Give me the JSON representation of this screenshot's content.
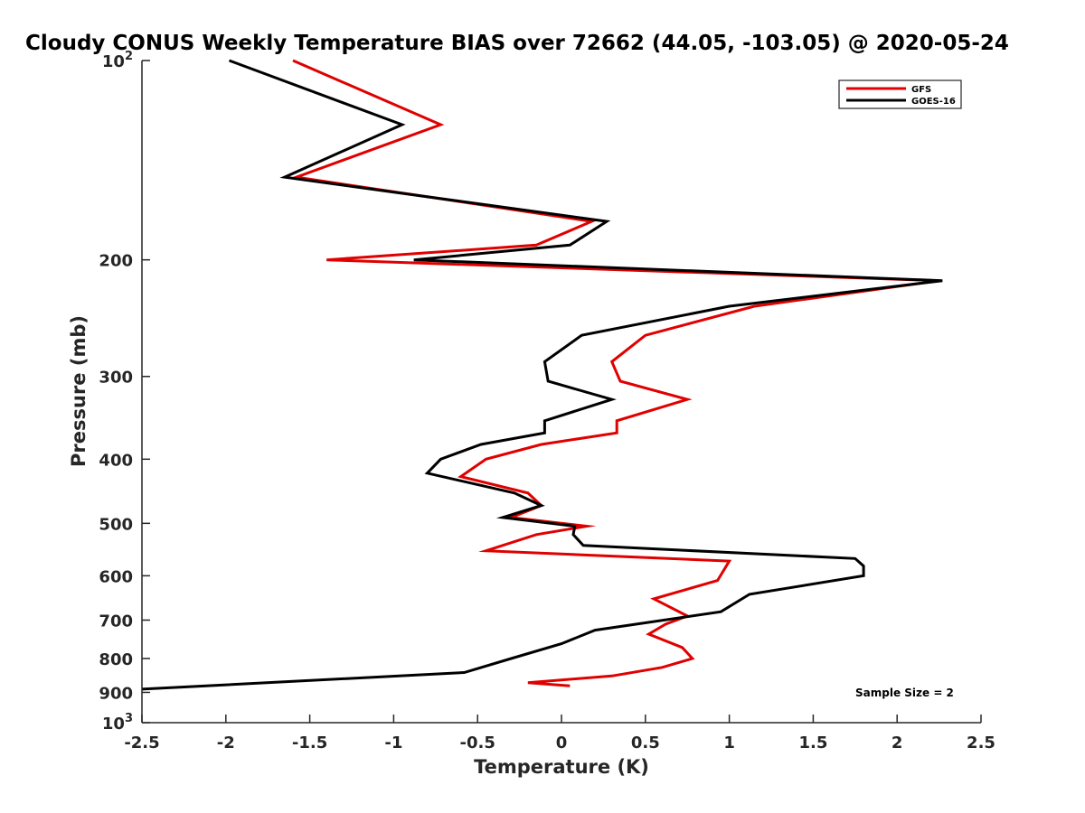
{
  "chart_data": {
    "type": "line",
    "title": "Cloudy CONUS Weekly Temperature BIAS over 72662 (44.05, -103.05) @ 2020-05-24",
    "xlabel": "Temperature (K)",
    "ylabel": "Pressure (mb)",
    "xlim": [
      -2.5,
      2.5
    ],
    "ylim": [
      100,
      1000
    ],
    "y_scale": "log",
    "y_reversed": true,
    "grid": false,
    "legend_position": "top-right",
    "x_ticks": [
      {
        "value": -2.5,
        "label": "-2.5"
      },
      {
        "value": -2,
        "label": "-2"
      },
      {
        "value": -1.5,
        "label": "-1.5"
      },
      {
        "value": -1,
        "label": "-1"
      },
      {
        "value": -0.5,
        "label": "-0.5"
      },
      {
        "value": 0,
        "label": "0"
      },
      {
        "value": 0.5,
        "label": "0.5"
      },
      {
        "value": 1,
        "label": "1"
      },
      {
        "value": 1.5,
        "label": "1.5"
      },
      {
        "value": 2,
        "label": "2"
      },
      {
        "value": 2.5,
        "label": "2.5"
      }
    ],
    "y_ticks": [
      {
        "value": 100,
        "base": "10",
        "exp": "2"
      },
      {
        "value": 200,
        "base": "200",
        "exp": ""
      },
      {
        "value": 300,
        "base": "300",
        "exp": ""
      },
      {
        "value": 400,
        "base": "400",
        "exp": ""
      },
      {
        "value": 500,
        "base": "500",
        "exp": ""
      },
      {
        "value": 600,
        "base": "600",
        "exp": ""
      },
      {
        "value": 700,
        "base": "700",
        "exp": ""
      },
      {
        "value": 800,
        "base": "800",
        "exp": ""
      },
      {
        "value": 900,
        "base": "900",
        "exp": ""
      },
      {
        "value": 1000,
        "base": "10",
        "exp": "3"
      }
    ],
    "annotation": "Sample Size = 2",
    "series": [
      {
        "name": "GFS",
        "color": "#e00000",
        "points": [
          [
            -1.6,
            100
          ],
          [
            -0.72,
            125
          ],
          [
            -1.58,
            150
          ],
          [
            0.18,
            175
          ],
          [
            -0.15,
            190
          ],
          [
            -1.4,
            200
          ],
          [
            2.25,
            215
          ],
          [
            1.15,
            235
          ],
          [
            0.5,
            260
          ],
          [
            0.3,
            285
          ],
          [
            0.35,
            305
          ],
          [
            0.75,
            325
          ],
          [
            0.33,
            350
          ],
          [
            0.33,
            365
          ],
          [
            -0.12,
            380
          ],
          [
            -0.45,
            400
          ],
          [
            -0.6,
            425
          ],
          [
            -0.2,
            450
          ],
          [
            -0.12,
            470
          ],
          [
            -0.3,
            490
          ],
          [
            0.15,
            505
          ],
          [
            -0.15,
            520
          ],
          [
            -0.45,
            550
          ],
          [
            1.0,
            570
          ],
          [
            0.93,
            610
          ],
          [
            0.55,
            650
          ],
          [
            0.75,
            690
          ],
          [
            0.62,
            710
          ],
          [
            0.52,
            735
          ],
          [
            0.72,
            770
          ],
          [
            0.78,
            800
          ],
          [
            0.6,
            825
          ],
          [
            0.3,
            850
          ],
          [
            -0.2,
            870
          ],
          [
            0.05,
            880
          ]
        ]
      },
      {
        "name": "GOES-16",
        "color": "#000000",
        "points": [
          [
            -1.98,
            100
          ],
          [
            -0.95,
            125
          ],
          [
            -1.65,
            150
          ],
          [
            0.27,
            175
          ],
          [
            0.05,
            190
          ],
          [
            -0.88,
            200
          ],
          [
            2.27,
            215
          ],
          [
            1.0,
            235
          ],
          [
            0.12,
            260
          ],
          [
            -0.1,
            285
          ],
          [
            -0.08,
            305
          ],
          [
            0.3,
            325
          ],
          [
            -0.1,
            350
          ],
          [
            -0.1,
            365
          ],
          [
            -0.48,
            380
          ],
          [
            -0.72,
            400
          ],
          [
            -0.8,
            420
          ],
          [
            -0.28,
            450
          ],
          [
            -0.12,
            470
          ],
          [
            -0.35,
            490
          ],
          [
            0.08,
            505
          ],
          [
            0.07,
            520
          ],
          [
            0.13,
            540
          ],
          [
            1.75,
            565
          ],
          [
            1.8,
            580
          ],
          [
            1.8,
            600
          ],
          [
            1.12,
            640
          ],
          [
            0.95,
            680
          ],
          [
            0.2,
            725
          ],
          [
            0.0,
            760
          ],
          [
            -0.3,
            800
          ],
          [
            -0.58,
            840
          ],
          [
            -2.5,
            890
          ]
        ]
      }
    ]
  }
}
